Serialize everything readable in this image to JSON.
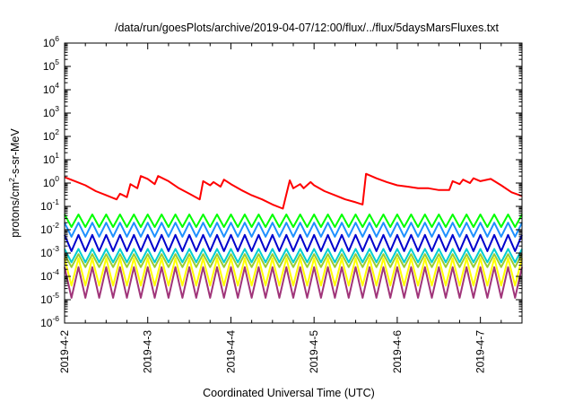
{
  "chart_data": {
    "type": "line",
    "title": "/data/run/goesPlots/archive/2019-04-07/12:00/flux/../flux/5daysMarsFluxes.txt",
    "xlabel": "Coordinated Universal Time (UTC)",
    "ylabel": {
      "base": "protons/cm",
      "sup": "2",
      "rest": "-s-sr-MeV"
    },
    "y_scale": "log",
    "ylim": [
      1e-06,
      1000000.0
    ],
    "y_ticks": [
      {
        "base": "10",
        "exp": "-6"
      },
      {
        "base": "10",
        "exp": "-5"
      },
      {
        "base": "10",
        "exp": "-4"
      },
      {
        "base": "10",
        "exp": "-3"
      },
      {
        "base": "10",
        "exp": "-2"
      },
      {
        "base": "10",
        "exp": "-1"
      },
      {
        "base": "10",
        "exp": "0"
      },
      {
        "base": "10",
        "exp": "1"
      },
      {
        "base": "10",
        "exp": "2"
      },
      {
        "base": "10",
        "exp": "3"
      },
      {
        "base": "10",
        "exp": "4"
      },
      {
        "base": "10",
        "exp": "5"
      },
      {
        "base": "10",
        "exp": "6"
      }
    ],
    "x_range": [
      "2019-04-02",
      "2019-04-07 12:00"
    ],
    "x_ticks": [
      "2019-4-2",
      "2019-4-3",
      "2019-4-4",
      "2019-4-5",
      "2019-4-6",
      "2019-4-7"
    ],
    "grid": false,
    "legend": "none",
    "series": [
      {
        "color": "#ff0000",
        "x": [
          "2019-04-02 00:00",
          "2019-04-02 03:00",
          "2019-04-02 06:00",
          "2019-04-02 09:00",
          "2019-04-02 12:00",
          "2019-04-02 15:00",
          "2019-04-02 16:00",
          "2019-04-02 18:00",
          "2019-04-02 19:00",
          "2019-04-02 21:00",
          "2019-04-02 22:00",
          "2019-04-03 00:00",
          "2019-04-03 02:00",
          "2019-04-03 03:00",
          "2019-04-03 06:00",
          "2019-04-03 09:00",
          "2019-04-03 12:00",
          "2019-04-03 15:00",
          "2019-04-03 16:00",
          "2019-04-03 18:00",
          "2019-04-03 19:00",
          "2019-04-03 21:00",
          "2019-04-03 22:00",
          "2019-04-04 00:00",
          "2019-04-04 03:00",
          "2019-04-04 06:00",
          "2019-04-04 09:00",
          "2019-04-04 12:00",
          "2019-04-04 15:00",
          "2019-04-04 17:00",
          "2019-04-04 18:00",
          "2019-04-04 20:00",
          "2019-04-04 21:00",
          "2019-04-04 23:00",
          "2019-04-05 00:00",
          "2019-04-05 03:00",
          "2019-04-05 06:00",
          "2019-04-05 09:00",
          "2019-04-05 12:00",
          "2019-04-05 14:00",
          "2019-04-05 15:00",
          "2019-04-05 18:00",
          "2019-04-05 21:00",
          "2019-04-06 00:00",
          "2019-04-06 03:00",
          "2019-04-06 06:00",
          "2019-04-06 09:00",
          "2019-04-06 12:00",
          "2019-04-06 15:00",
          "2019-04-06 16:00",
          "2019-04-06 18:00",
          "2019-04-06 19:00",
          "2019-04-06 21:00",
          "2019-04-06 22:00",
          "2019-04-07 00:00",
          "2019-04-07 03:00",
          "2019-04-07 06:00",
          "2019-04-07 09:00",
          "2019-04-07 12:00"
        ],
        "values": [
          1.8,
          1.2,
          0.8,
          0.45,
          0.3,
          0.2,
          0.35,
          0.25,
          0.9,
          0.6,
          2.0,
          1.5,
          0.9,
          2.0,
          1.2,
          0.6,
          0.35,
          0.2,
          1.2,
          0.8,
          1.1,
          0.7,
          1.4,
          0.9,
          0.5,
          0.3,
          0.2,
          0.12,
          0.08,
          1.3,
          0.6,
          0.9,
          0.6,
          1.1,
          0.8,
          0.45,
          0.3,
          0.2,
          0.15,
          0.12,
          2.5,
          1.6,
          1.1,
          0.8,
          0.7,
          0.6,
          0.6,
          0.5,
          0.5,
          1.2,
          0.9,
          1.4,
          1.0,
          1.6,
          1.2,
          1.5,
          0.8,
          0.4,
          0.28
        ]
      },
      {
        "color": "#00ff00",
        "pattern": "sawtooth",
        "peak": 0.045,
        "trough": 0.013,
        "period_hours": 4
      },
      {
        "color": "#1e90ff",
        "pattern": "sawtooth",
        "peak": 0.02,
        "trough": 0.005,
        "period_hours": 4
      },
      {
        "color": "#0000cd",
        "pattern": "sawtooth",
        "peak": 0.006,
        "trough": 0.0012,
        "period_hours": 4
      },
      {
        "color": "#00ced1",
        "pattern": "sawtooth",
        "peak": 0.0015,
        "trough": 0.0004,
        "period_hours": 4
      },
      {
        "color": "#9acd32",
        "pattern": "sawtooth",
        "peak": 0.0009,
        "trough": 0.00025,
        "period_hours": 4
      },
      {
        "color": "#ffff00",
        "pattern": "sawtooth",
        "peak": 0.0006,
        "trough": 4e-05,
        "period_hours": 4
      },
      {
        "color": "#a0357a",
        "pattern": "sawtooth",
        "peak": 0.00025,
        "trough": 1.2e-05,
        "period_hours": 4
      }
    ]
  }
}
